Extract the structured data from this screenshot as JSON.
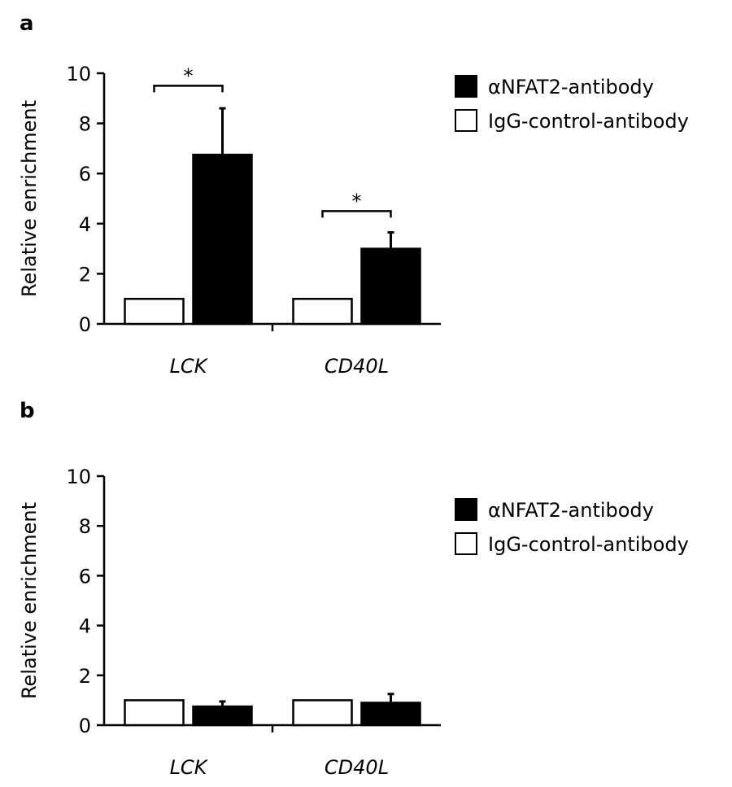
{
  "chart_data": [
    {
      "panel_label": "a",
      "type": "bar",
      "categories": [
        "LCK",
        "CD40L"
      ],
      "series": [
        {
          "name": "IgG-control-antibody",
          "color": "#ffffff",
          "values": [
            1.0,
            1.0
          ],
          "errors": [
            0,
            0
          ]
        },
        {
          "name": "αNFAT2-antibody",
          "color": "#000000",
          "values": [
            6.75,
            3.0
          ],
          "errors": [
            1.85,
            0.65
          ]
        }
      ],
      "ylabel": "Relative enrichment",
      "ylim": [
        0,
        10
      ],
      "yticks": [
        0,
        2,
        4,
        6,
        8,
        10
      ],
      "significance": [
        {
          "category": "LCK",
          "bracket_y": 9.5,
          "label": "*"
        },
        {
          "category": "CD40L",
          "bracket_y": 4.5,
          "label": "*"
        }
      ],
      "legend": [
        "αNFAT2-antibody",
        "IgG-control-antibody"
      ]
    },
    {
      "panel_label": "b",
      "type": "bar",
      "categories": [
        "LCK",
        "CD40L"
      ],
      "series": [
        {
          "name": "IgG-control-antibody",
          "color": "#ffffff",
          "values": [
            1.0,
            1.0
          ],
          "errors": [
            0,
            0
          ]
        },
        {
          "name": "αNFAT2-antibody",
          "color": "#000000",
          "values": [
            0.75,
            0.9
          ],
          "errors": [
            0.2,
            0.35
          ]
        }
      ],
      "ylabel": "Relative enrichment",
      "ylim": [
        0,
        10
      ],
      "yticks": [
        0,
        2,
        4,
        6,
        8,
        10
      ],
      "significance": [],
      "legend": [
        "αNFAT2-antibody",
        "IgG-control-antibody"
      ]
    }
  ]
}
